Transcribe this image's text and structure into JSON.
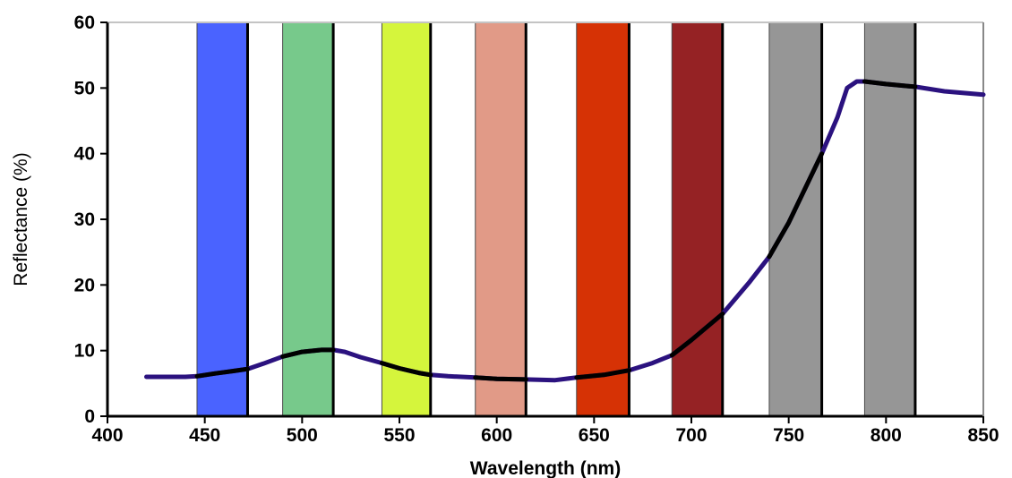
{
  "chart_data": {
    "type": "line",
    "title": "",
    "xlabel": "Wavelength (nm)",
    "ylabel": "Reflectance (%)",
    "xlim": [
      400,
      850
    ],
    "ylim": [
      0,
      60
    ],
    "x_ticks": [
      400,
      450,
      500,
      550,
      600,
      650,
      700,
      750,
      800,
      850
    ],
    "y_ticks": [
      0,
      10,
      20,
      30,
      40,
      50,
      60
    ],
    "grid": false,
    "legend": "none",
    "bands": [
      {
        "start": 446,
        "end": 472,
        "color": "#4a63ff"
      },
      {
        "start": 490,
        "end": 516,
        "color": "#77c98b"
      },
      {
        "start": 541,
        "end": 566,
        "color": "#d5f53c"
      },
      {
        "start": 589,
        "end": 615,
        "color": "#e19a87"
      },
      {
        "start": 641,
        "end": 668,
        "color": "#d63205"
      },
      {
        "start": 690,
        "end": 716,
        "color": "#952224"
      },
      {
        "start": 740,
        "end": 767,
        "color": "#969696"
      },
      {
        "start": 789,
        "end": 815,
        "color": "#969696"
      }
    ],
    "series": [
      {
        "color": "#2b127f",
        "x": [
          420,
          430,
          440,
          446,
          455,
          465,
          472,
          480,
          490,
          500,
          510,
          516,
          522,
          530,
          541,
          550,
          560,
          566,
          575,
          589,
          600,
          615,
          630,
          641,
          655,
          668,
          680,
          690,
          700,
          716,
          730,
          740,
          750,
          767,
          775,
          780,
          785,
          789,
          800,
          815,
          830,
          850
        ],
        "y": [
          6.0,
          6.0,
          6.0,
          6.1,
          6.5,
          6.9,
          7.2,
          8.0,
          9.1,
          9.8,
          10.1,
          10.1,
          9.8,
          9.0,
          8.1,
          7.3,
          6.6,
          6.3,
          6.1,
          5.9,
          5.7,
          5.6,
          5.5,
          5.9,
          6.3,
          7.0,
          8.1,
          9.3,
          11.6,
          15.6,
          20.5,
          24.3,
          29.5,
          40.0,
          45.5,
          50.0,
          51.0,
          51.0,
          50.6,
          50.2,
          49.5,
          49.0
        ]
      }
    ],
    "band_highlight_color": "#000000"
  }
}
